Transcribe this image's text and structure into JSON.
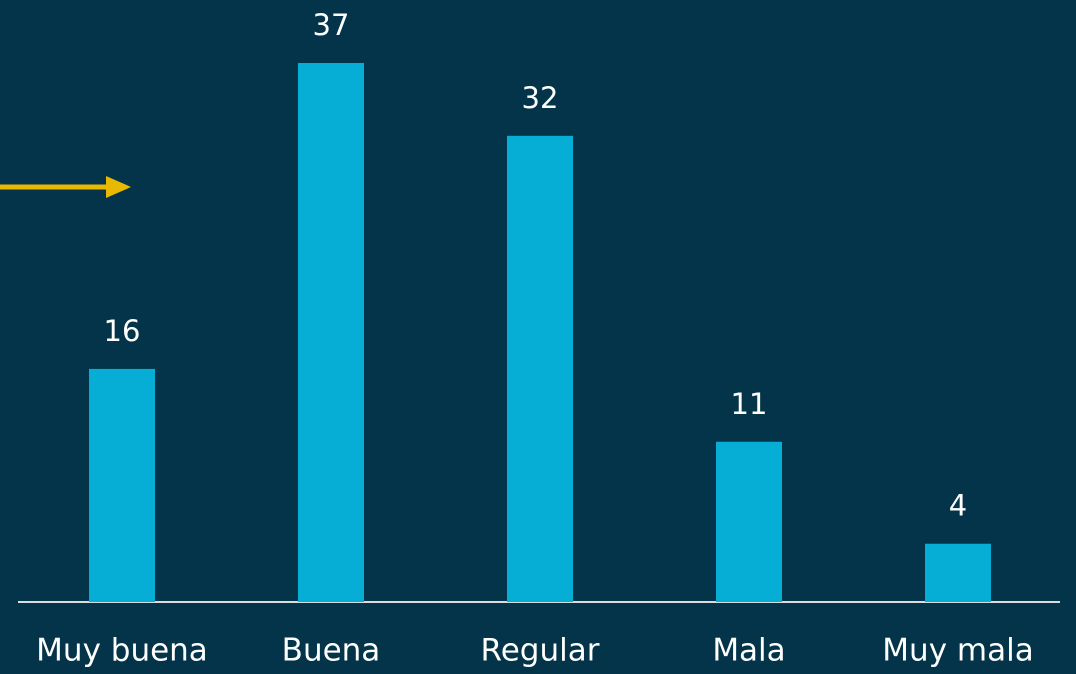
{
  "chart_data": {
    "type": "bar",
    "categories": [
      "Muy buena",
      "Buena",
      "Regular",
      "Mala",
      "Muy mala"
    ],
    "values": [
      16,
      37,
      32,
      11,
      4
    ],
    "color": "#06aed6"
  }
}
